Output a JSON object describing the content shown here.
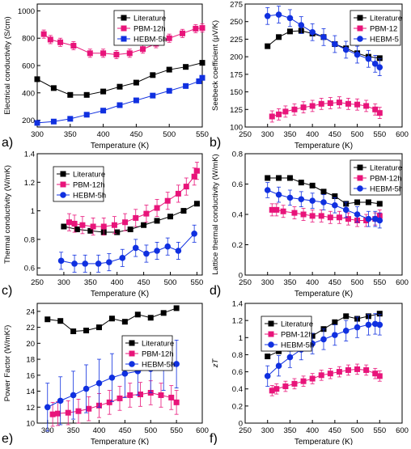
{
  "colors": {
    "literature": "#000000",
    "pbm": "#e8147a",
    "hebm": "#1030e0"
  },
  "chart_data": [
    {
      "panel_label": "a)",
      "type": "line",
      "xlabel": "Temperature (K)",
      "ylabel": "Electrical conductivity (S/cm)",
      "xlim": [
        300,
        550
      ],
      "ylim": [
        150,
        1050
      ],
      "xticks": [
        300,
        350,
        400,
        450,
        500,
        550
      ],
      "yticks": [
        200,
        400,
        600,
        800,
        1000
      ],
      "legend_position": "top-center",
      "series": [
        {
          "name": "Literature",
          "color": "#000000",
          "marker": "square",
          "x": [
            300,
            325,
            350,
            375,
            400,
            425,
            450,
            475,
            500,
            525,
            550
          ],
          "y": [
            500,
            435,
            385,
            385,
            410,
            445,
            475,
            530,
            570,
            590,
            620
          ]
        },
        {
          "name": "PBM-12h",
          "color": "#e8147a",
          "marker": "square",
          "error": 30,
          "x": [
            310,
            320,
            335,
            355,
            380,
            400,
            420,
            440,
            460,
            480,
            500,
            520,
            540,
            550
          ],
          "y": [
            830,
            790,
            770,
            745,
            690,
            690,
            680,
            690,
            720,
            760,
            800,
            835,
            870,
            875
          ]
        },
        {
          "name": "HEBM-5h",
          "color": "#1030e0",
          "marker": "square",
          "x": [
            300,
            325,
            350,
            375,
            400,
            425,
            450,
            475,
            500,
            525,
            545,
            550
          ],
          "y": [
            180,
            190,
            210,
            240,
            270,
            310,
            345,
            380,
            415,
            450,
            485,
            510
          ]
        }
      ]
    },
    {
      "panel_label": "b)",
      "type": "line",
      "xlabel": "Temperature (K)",
      "ylabel": "Seebeck coefficient (μV/K)",
      "xlim": [
        250,
        600
      ],
      "ylim": [
        100,
        275
      ],
      "xticks": [
        250,
        300,
        350,
        400,
        450,
        500,
        550,
        600
      ],
      "yticks": [
        100,
        125,
        150,
        175,
        200,
        225,
        250,
        275
      ],
      "legend_position": "top-right",
      "series": [
        {
          "name": "Literature",
          "color": "#000000",
          "marker": "square",
          "x": [
            300,
            325,
            350,
            375,
            400,
            425,
            450,
            475,
            500,
            525,
            550
          ],
          "y": [
            215,
            228,
            236,
            237,
            233,
            228,
            218,
            212,
            205,
            200,
            198
          ]
        },
        {
          "name": "PBM-12",
          "color": "#e8147a",
          "marker": "square",
          "error": 8,
          "x": [
            310,
            325,
            340,
            360,
            380,
            400,
            420,
            440,
            460,
            480,
            500,
            520,
            540,
            550
          ],
          "y": [
            115,
            118,
            122,
            125,
            128,
            130,
            133,
            134,
            135,
            133,
            132,
            130,
            125,
            120
          ]
        },
        {
          "name": "HEBM-5",
          "color": "#1030e0",
          "marker": "circle",
          "error": 12,
          "x": [
            300,
            325,
            350,
            375,
            400,
            425,
            450,
            475,
            500,
            525,
            540,
            550
          ],
          "y": [
            258,
            260,
            255,
            245,
            235,
            228,
            218,
            210,
            203,
            197,
            190,
            185
          ]
        }
      ]
    },
    {
      "panel_label": "c)",
      "type": "line",
      "xlabel": "Temperature (K)",
      "ylabel": "Thermal conductivity (W/mK)",
      "xlim": [
        250,
        560
      ],
      "ylim": [
        0.55,
        1.4
      ],
      "xticks": [
        250,
        300,
        350,
        400,
        450,
        500,
        550
      ],
      "yticks": [
        0.6,
        0.8,
        1.0,
        1.2,
        1.4
      ],
      "legend_position": "top-left",
      "series": [
        {
          "name": "Literature",
          "color": "#000000",
          "marker": "square",
          "x": [
            300,
            325,
            350,
            375,
            400,
            425,
            450,
            475,
            500,
            525,
            550
          ],
          "y": [
            0.89,
            0.87,
            0.86,
            0.85,
            0.85,
            0.87,
            0.9,
            0.93,
            0.96,
            1.0,
            1.05
          ]
        },
        {
          "name": "PBM-12h",
          "color": "#e8147a",
          "marker": "square",
          "error": 0.06,
          "x": [
            310,
            320,
            335,
            355,
            375,
            395,
            415,
            435,
            455,
            475,
            495,
            515,
            530,
            545,
            550
          ],
          "y": [
            0.92,
            0.91,
            0.9,
            0.89,
            0.89,
            0.9,
            0.92,
            0.95,
            0.98,
            1.02,
            1.07,
            1.12,
            1.17,
            1.24,
            1.28
          ]
        },
        {
          "name": "HEBM-5h",
          "color": "#1030e0",
          "marker": "circle",
          "error": 0.06,
          "x": [
            295,
            320,
            340,
            365,
            385,
            410,
            435,
            455,
            475,
            495,
            515,
            545
          ],
          "y": [
            0.65,
            0.63,
            0.63,
            0.63,
            0.64,
            0.67,
            0.74,
            0.7,
            0.72,
            0.75,
            0.72,
            0.84
          ]
        }
      ]
    },
    {
      "panel_label": "d)",
      "type": "line",
      "xlabel": "Temperature (K)",
      "ylabel": "Lattice thermal conductivity (W/mK)",
      "xlim": [
        250,
        600
      ],
      "ylim": [
        0.0,
        0.8
      ],
      "xticks": [
        250,
        300,
        350,
        400,
        450,
        500,
        550,
        600
      ],
      "yticks": [
        0.0,
        0.2,
        0.4,
        0.6,
        0.8
      ],
      "legend_position": "top-right",
      "series": [
        {
          "name": "Literature",
          "color": "#000000",
          "marker": "square",
          "x": [
            300,
            325,
            350,
            375,
            400,
            425,
            450,
            475,
            500,
            525,
            550
          ],
          "y": [
            0.64,
            0.64,
            0.64,
            0.61,
            0.59,
            0.55,
            0.52,
            0.47,
            0.48,
            0.48,
            0.47
          ]
        },
        {
          "name": "PBM-12h",
          "color": "#e8147a",
          "marker": "square",
          "error": 0.04,
          "x": [
            310,
            320,
            335,
            360,
            380,
            400,
            420,
            440,
            460,
            480,
            500,
            520,
            540,
            550
          ],
          "y": [
            0.43,
            0.43,
            0.42,
            0.41,
            0.4,
            0.39,
            0.39,
            0.38,
            0.38,
            0.37,
            0.36,
            0.36,
            0.37,
            0.39
          ]
        },
        {
          "name": "HEBM-5h",
          "color": "#1030e0",
          "marker": "circle",
          "error": 0.05,
          "x": [
            300,
            325,
            350,
            375,
            400,
            425,
            450,
            475,
            500,
            525,
            540,
            550
          ],
          "y": [
            0.56,
            0.53,
            0.51,
            0.5,
            0.49,
            0.48,
            0.46,
            0.43,
            0.4,
            0.37,
            0.37,
            0.36
          ]
        }
      ]
    },
    {
      "panel_label": "e)",
      "type": "line",
      "xlabel": "Temperature (K)",
      "ylabel": "Power Factor (W/mK²)",
      "xlim": [
        280,
        600
      ],
      "ylim": [
        10,
        25
      ],
      "xticks": [
        300,
        350,
        400,
        450,
        500,
        550,
        600
      ],
      "yticks": [
        10,
        12,
        14,
        16,
        18,
        20,
        22,
        24
      ],
      "legend_position": "center-right",
      "series": [
        {
          "name": "Literature",
          "color": "#000000",
          "marker": "square",
          "x": [
            300,
            325,
            350,
            375,
            400,
            425,
            450,
            475,
            500,
            525,
            550
          ],
          "y": [
            23.0,
            22.8,
            21.5,
            21.6,
            22.0,
            23.1,
            22.7,
            23.6,
            23.2,
            23.8,
            24.4
          ]
        },
        {
          "name": "PBM-12h",
          "color": "#e8147a",
          "marker": "square",
          "error": 1.5,
          "x": [
            310,
            320,
            340,
            360,
            380,
            400,
            420,
            440,
            460,
            480,
            500,
            520,
            540,
            550
          ],
          "y": [
            11.1,
            11.2,
            11.3,
            11.5,
            11.8,
            12.2,
            12.6,
            13.1,
            13.5,
            13.6,
            13.8,
            13.5,
            13.2,
            12.6
          ]
        },
        {
          "name": "HEBM-5h",
          "color": "#1030e0",
          "marker": "circle",
          "error": 3.0,
          "x": [
            300,
            325,
            350,
            375,
            400,
            425,
            450,
            475,
            500,
            525,
            550
          ],
          "y": [
            12.0,
            12.8,
            13.5,
            14.3,
            15.0,
            15.7,
            16.2,
            16.5,
            16.8,
            17.1,
            17.4
          ]
        }
      ]
    },
    {
      "panel_label": "f)",
      "type": "line",
      "xlabel": "Temperature (K)",
      "ylabel": "zT",
      "xlim": [
        250,
        600
      ],
      "ylim": [
        0.0,
        1.4
      ],
      "xticks": [
        250,
        300,
        350,
        400,
        450,
        500,
        550,
        600
      ],
      "yticks": [
        0.0,
        0.2,
        0.4,
        0.6,
        0.8,
        1.0,
        1.2,
        1.4
      ],
      "legend_position": "top-left",
      "series": [
        {
          "name": "Literature",
          "color": "#000000",
          "marker": "square",
          "x": [
            300,
            325,
            350,
            375,
            400,
            425,
            450,
            475,
            500,
            525,
            550
          ],
          "y": [
            0.78,
            0.84,
            0.87,
            0.94,
            1.02,
            1.1,
            1.18,
            1.25,
            1.22,
            1.25,
            1.28
          ]
        },
        {
          "name": "PBM-12h",
          "color": "#e8147a",
          "marker": "square",
          "error": 0.06,
          "x": [
            310,
            320,
            340,
            360,
            380,
            400,
            420,
            440,
            460,
            480,
            500,
            520,
            540,
            550
          ],
          "y": [
            0.38,
            0.4,
            0.43,
            0.46,
            0.49,
            0.52,
            0.56,
            0.58,
            0.6,
            0.62,
            0.63,
            0.62,
            0.58,
            0.55
          ]
        },
        {
          "name": "HEBM-5h",
          "color": "#1030e0",
          "marker": "circle",
          "error": 0.12,
          "x": [
            300,
            325,
            350,
            375,
            400,
            425,
            450,
            475,
            500,
            525,
            540,
            550
          ],
          "y": [
            0.55,
            0.67,
            0.77,
            0.86,
            0.93,
            0.98,
            1.03,
            1.08,
            1.12,
            1.15,
            1.16,
            1.15
          ]
        }
      ]
    }
  ]
}
